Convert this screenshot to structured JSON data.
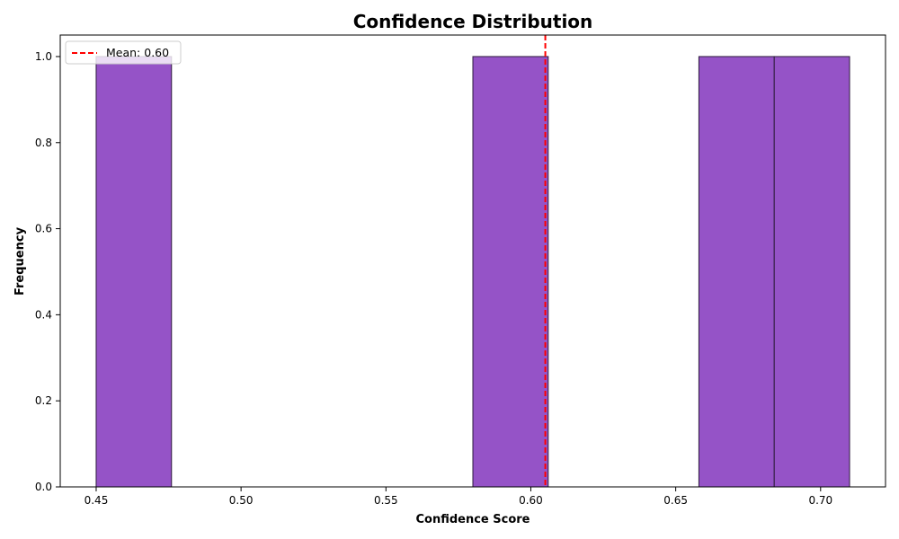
{
  "chart_data": {
    "type": "bar",
    "title": "Confidence Distribution",
    "xlabel": "Confidence Score",
    "ylabel": "Frequency",
    "xlim": [
      0.4376,
      0.7224
    ],
    "ylim": [
      0,
      1.05
    ],
    "xticks": [
      "0.45",
      "0.50",
      "0.55",
      "0.60",
      "0.65",
      "0.70"
    ],
    "xtick_values": [
      0.45,
      0.5,
      0.55,
      0.6,
      0.65,
      0.7
    ],
    "yticks": [
      "0.0",
      "0.2",
      "0.4",
      "0.6",
      "0.8",
      "1.0"
    ],
    "ytick_values": [
      0.0,
      0.2,
      0.4,
      0.6,
      0.8,
      1.0
    ],
    "bins": [
      {
        "x0": 0.45,
        "x1": 0.476,
        "count": 1
      },
      {
        "x0": 0.58,
        "x1": 0.606,
        "count": 1
      },
      {
        "x0": 0.658,
        "x1": 0.684,
        "count": 1
      },
      {
        "x0": 0.684,
        "x1": 0.71,
        "count": 1
      }
    ],
    "mean_line": {
      "value": 0.605,
      "label": "Mean: 0.60",
      "color": "#ff0000"
    },
    "bar_color": "#9553c7",
    "bar_edge_color": "#2d1b3d",
    "legend_position": "upper-left",
    "grid": false
  }
}
